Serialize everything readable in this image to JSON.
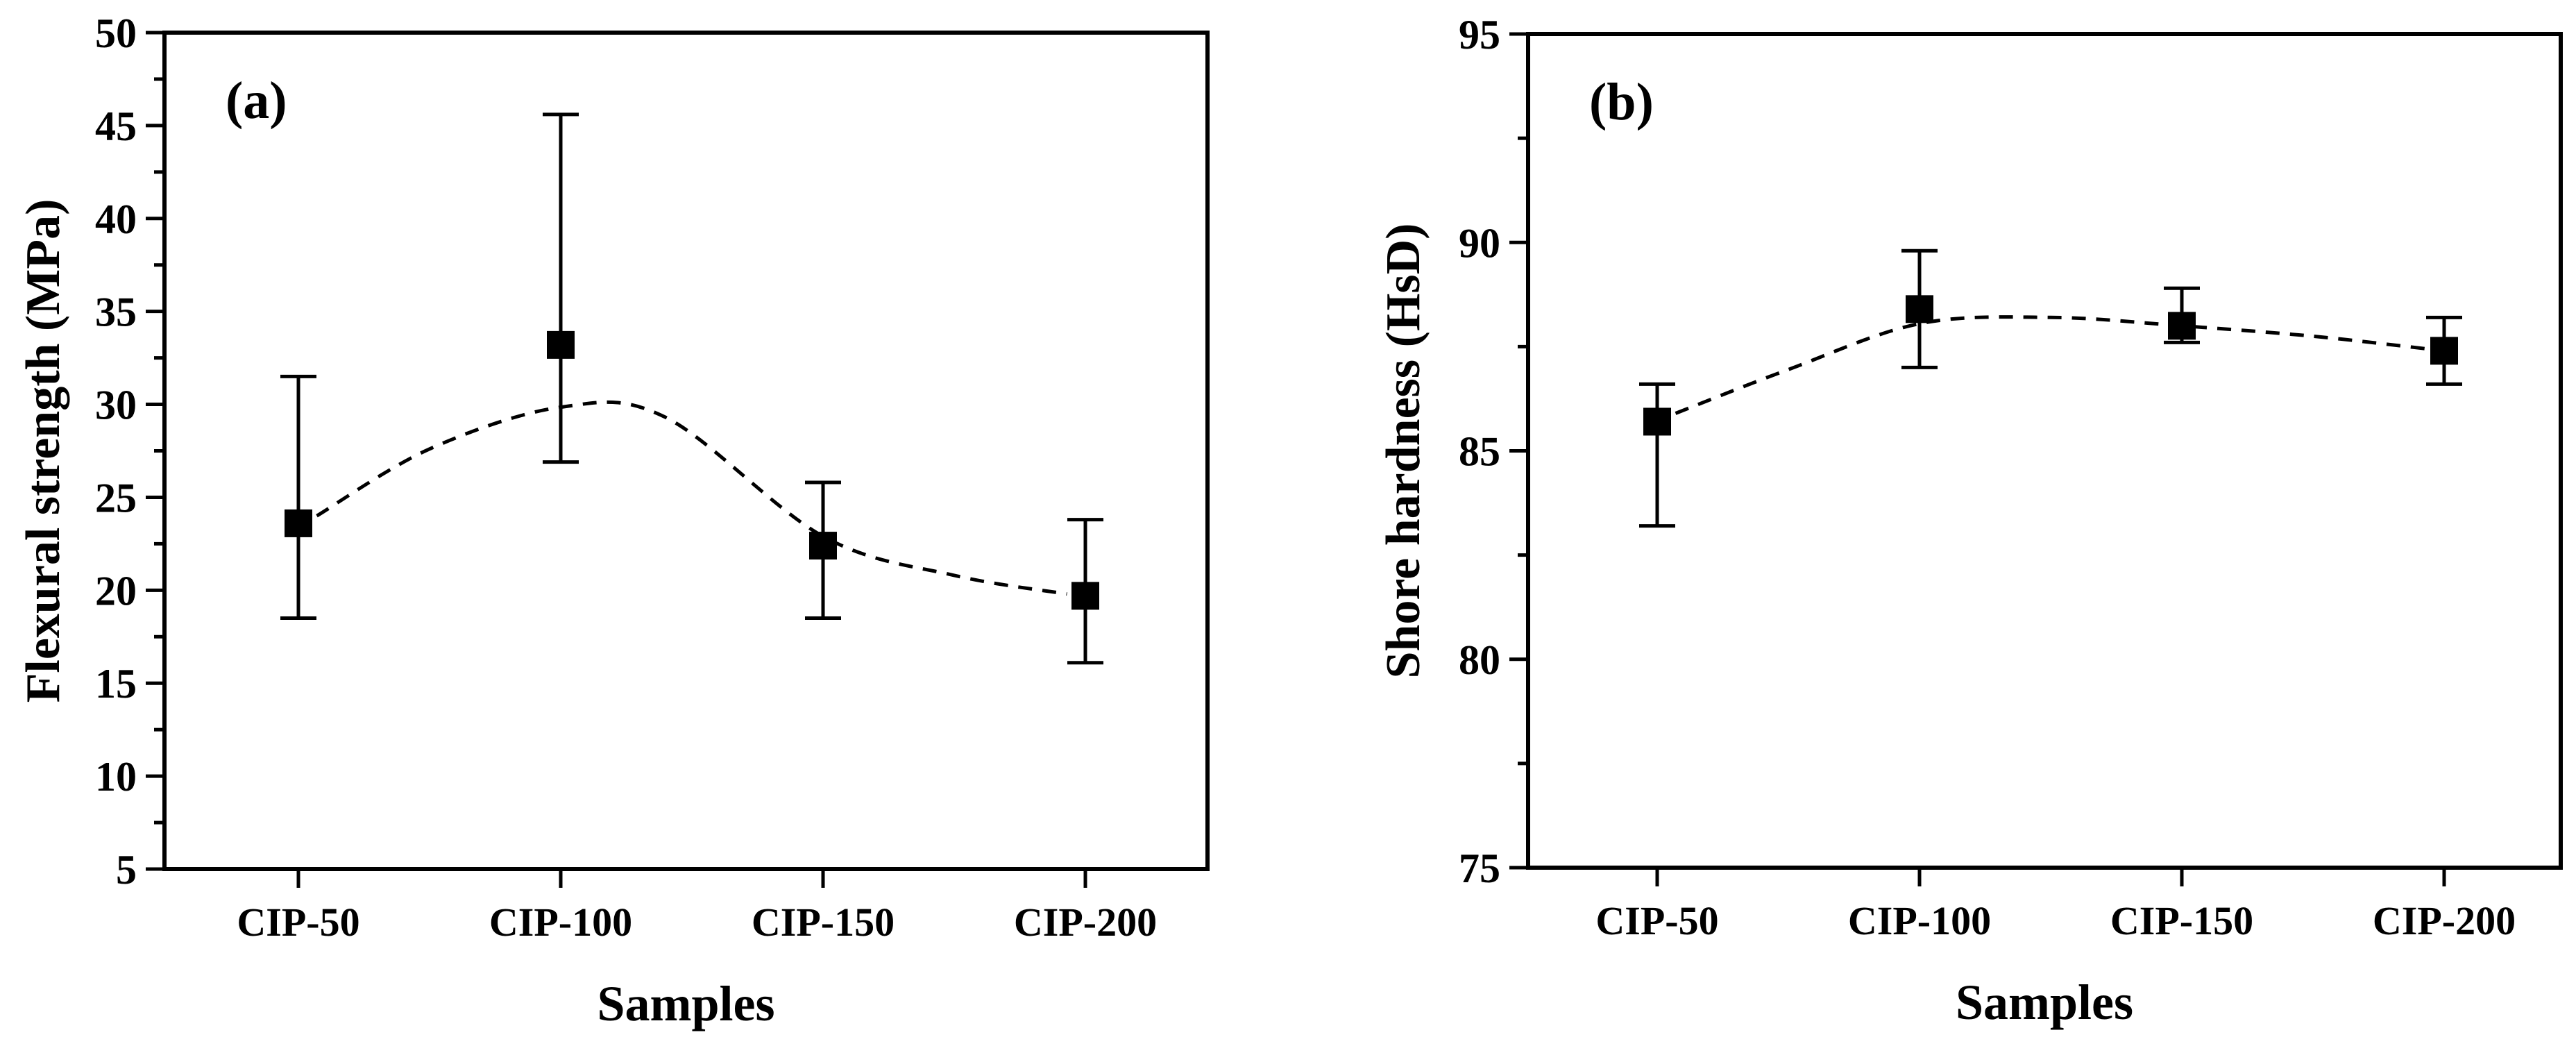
{
  "figure": {
    "background_color": "#ffffff",
    "ink_color": "#000000",
    "panels": [
      {
        "label": "(a)"
      },
      {
        "label": "(b)"
      }
    ]
  },
  "chart_data": [
    {
      "type": "scatter",
      "panel_label": "(a)",
      "title": "",
      "xlabel": "Samples",
      "ylabel": "Flexural strength (MPa)",
      "categories": [
        "CIP-50",
        "CIP-100",
        "CIP-150",
        "CIP-200"
      ],
      "series": [
        {
          "name": "Flexural strength",
          "values": [
            23.6,
            33.2,
            22.4,
            19.7
          ],
          "error_upper": [
            31.5,
            45.6,
            25.8,
            23.8
          ],
          "error_lower": [
            18.5,
            26.9,
            18.5,
            16.1
          ]
        }
      ],
      "trend_curve": [
        [
          0.07,
          24.0
        ],
        [
          0.5,
          27.6
        ],
        [
          1.0,
          29.85
        ],
        [
          1.4,
          29.3
        ],
        [
          2.0,
          22.9
        ],
        [
          2.5,
          20.8
        ],
        [
          2.93,
          19.8
        ]
      ],
      "ylim": [
        5,
        50
      ],
      "ytick_step": 5,
      "yminor_step": 2.5,
      "ytick_labels": [
        "5",
        "10",
        "15",
        "20",
        "25",
        "30",
        "35",
        "40",
        "45",
        "50"
      ],
      "marker": "filled-square",
      "line_style": "dashed",
      "grid": false,
      "legend": false
    },
    {
      "type": "scatter",
      "panel_label": "(b)",
      "title": "",
      "xlabel": "Samples",
      "ylabel": "Shore hardness (HsD)",
      "categories": [
        "CIP-50",
        "CIP-100",
        "CIP-150",
        "CIP-200"
      ],
      "series": [
        {
          "name": "Shore hardness",
          "values": [
            85.7,
            88.4,
            88.0,
            87.4
          ],
          "error_upper": [
            86.6,
            89.8,
            88.9,
            88.2
          ],
          "error_lower": [
            83.2,
            87.0,
            87.6,
            86.6
          ]
        }
      ],
      "trend_curve": [
        [
          0.07,
          85.9
        ],
        [
          0.5,
          86.95
        ],
        [
          1.0,
          88.05
        ],
        [
          1.5,
          88.2
        ],
        [
          2.0,
          88.0
        ],
        [
          2.5,
          87.75
        ],
        [
          2.93,
          87.45
        ]
      ],
      "ylim": [
        75,
        95
      ],
      "ytick_step": 5,
      "yminor_step": 2.5,
      "ytick_labels": [
        "75",
        "80",
        "85",
        "90",
        "95"
      ],
      "marker": "filled-square",
      "line_style": "dashed",
      "grid": false,
      "legend": false
    }
  ]
}
